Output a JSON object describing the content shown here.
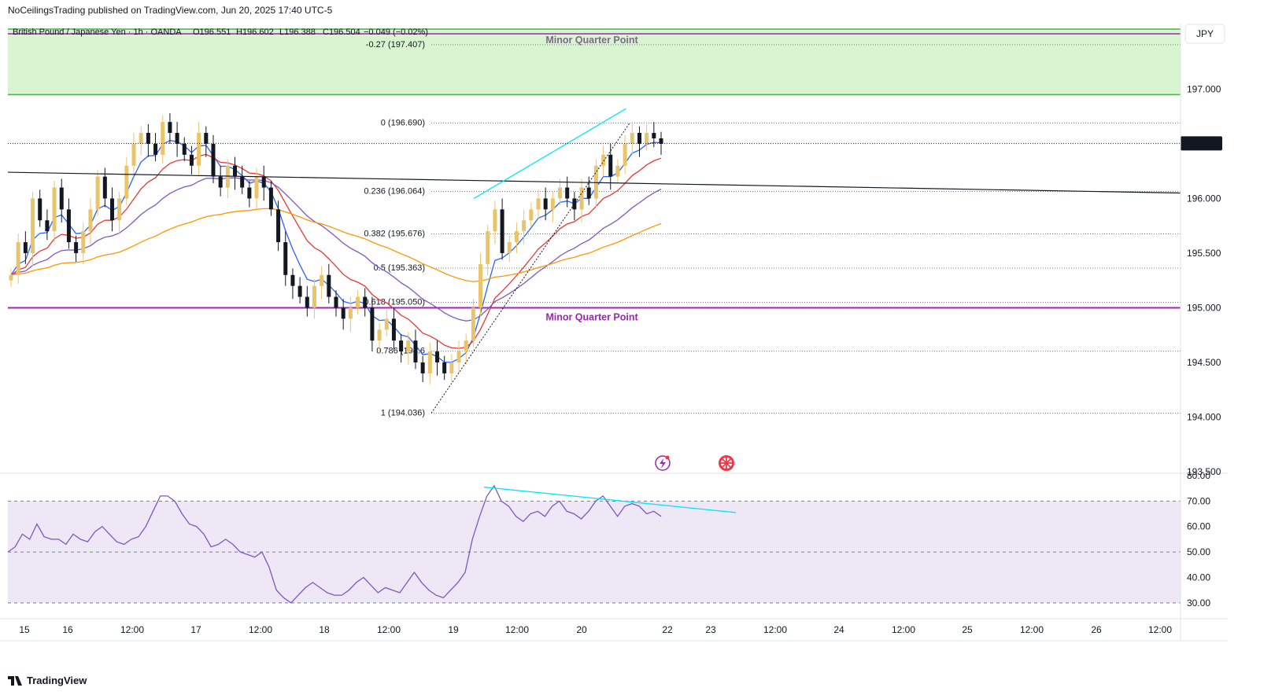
{
  "header": {
    "published_by": "NoCeilingsTrading published on TradingView.com, Jun 20, 2025 17:40 UTC-5"
  },
  "footer": {
    "brand": "TradingView"
  },
  "symbol_line": {
    "name": "British Pound / Japanese Yen · 1h · OANDA",
    "open": "O196.551",
    "high": "H196.602",
    "low": "L196.388",
    "close": "C196.504",
    "change": "−0.049 (−0.02%)"
  },
  "currency_label": "JPY",
  "last_price_label": "196.504",
  "colors": {
    "up": "#e9c46a",
    "down": "#131722",
    "ema_fast": "#2962ff",
    "ema_mid": "#e53935",
    "ema_slow": "#7e57c2",
    "ma_long": "#ff9800",
    "zone": "#d8f5d0",
    "zone_border": "#4caf50",
    "quarter_line": "#9c27b0",
    "trend": "#00e5ff",
    "rsi": "#7e57c2",
    "rsi_band": "#ede7f6"
  },
  "chart_data": {
    "type": "candlestick",
    "instrument": "British Pound / Japanese Yen",
    "timeframe": "1h",
    "ylim": [
      193.5,
      197.6
    ],
    "y_ticks": [
      "197.000",
      "196.500",
      "196.000",
      "195.500",
      "195.000",
      "194.500",
      "194.000",
      "193.500"
    ],
    "x_ticks": [
      "15",
      "16",
      "12:00",
      "17",
      "12:00",
      "18",
      "12:00",
      "19",
      "12:00",
      "20",
      "22",
      "23",
      "12:00",
      "24",
      "12:00",
      "25",
      "12:00",
      "26",
      "12:00"
    ],
    "supply_zone": {
      "from": 196.95,
      "to": 197.55,
      "label": "Minor Quarter Point"
    },
    "quarter_line": {
      "price": 195.0,
      "label": "Minor Quarter Point"
    },
    "fib_levels": [
      {
        "label": "-0.27 (197.407)",
        "price": 197.407
      },
      {
        "label": "0 (196.690)",
        "price": 196.69
      },
      {
        "label": "0.236 (196.064)",
        "price": 196.064
      },
      {
        "label": "0.382 (195.676)",
        "price": 195.676
      },
      {
        "label": "0.5 (195.363)",
        "price": 195.363
      },
      {
        "label": "0.618 (195.050)",
        "price": 195.05
      },
      {
        "label": "0.786 (194.6",
        "price": 194.603
      },
      {
        "label": "1 (194.036)",
        "price": 194.036
      }
    ],
    "closes": [
      195.3,
      195.6,
      195.5,
      196.0,
      195.8,
      195.7,
      196.1,
      195.9,
      195.6,
      195.5,
      195.7,
      195.9,
      196.2,
      196.0,
      195.8,
      196.0,
      196.3,
      196.5,
      196.6,
      196.5,
      196.4,
      196.7,
      196.6,
      196.5,
      196.4,
      196.3,
      196.6,
      196.5,
      196.2,
      196.1,
      196.3,
      196.2,
      196.1,
      196.0,
      196.2,
      196.1,
      195.9,
      195.6,
      195.3,
      195.2,
      195.1,
      195.0,
      195.2,
      195.3,
      195.1,
      195.0,
      194.9,
      195.0,
      195.1,
      195.0,
      194.7,
      194.8,
      194.9,
      194.7,
      194.6,
      194.7,
      194.5,
      194.4,
      194.6,
      194.5,
      194.4,
      194.5,
      194.6,
      194.7,
      195.0,
      195.4,
      195.7,
      195.9,
      195.5,
      195.6,
      195.7,
      195.8,
      195.9,
      196.0,
      195.9,
      196.0,
      196.1,
      196.0,
      195.9,
      196.1,
      196.0,
      196.3,
      196.4,
      196.2,
      196.3,
      196.5,
      196.6,
      196.5,
      196.6,
      196.55,
      196.5
    ],
    "rsi": {
      "ylim": [
        25,
        80
      ],
      "ticks": [
        "80.00",
        "70.00",
        "60.00",
        "50.00",
        "40.00",
        "30.00"
      ],
      "values": [
        50,
        52,
        57,
        55,
        61,
        56,
        55,
        55,
        53,
        57,
        55,
        54,
        58,
        60,
        57,
        54,
        53,
        55,
        56,
        60,
        66,
        72,
        72,
        70,
        65,
        61,
        60,
        57,
        52,
        53,
        55,
        53,
        50,
        49,
        48,
        50,
        44,
        35,
        32,
        30,
        33,
        36,
        38,
        36,
        34,
        33,
        33,
        35,
        38,
        40,
        37,
        34,
        36,
        35,
        34,
        38,
        42,
        38,
        35,
        33,
        32,
        35,
        38,
        42,
        55,
        64,
        72,
        76,
        70,
        68,
        64,
        62,
        65,
        66,
        64,
        68,
        70,
        66,
        65,
        63,
        66,
        70,
        72,
        68,
        64,
        68,
        69,
        68,
        65,
        66,
        64
      ],
      "divergence": {
        "x_from": 615,
        "x_to": 935
      }
    }
  }
}
